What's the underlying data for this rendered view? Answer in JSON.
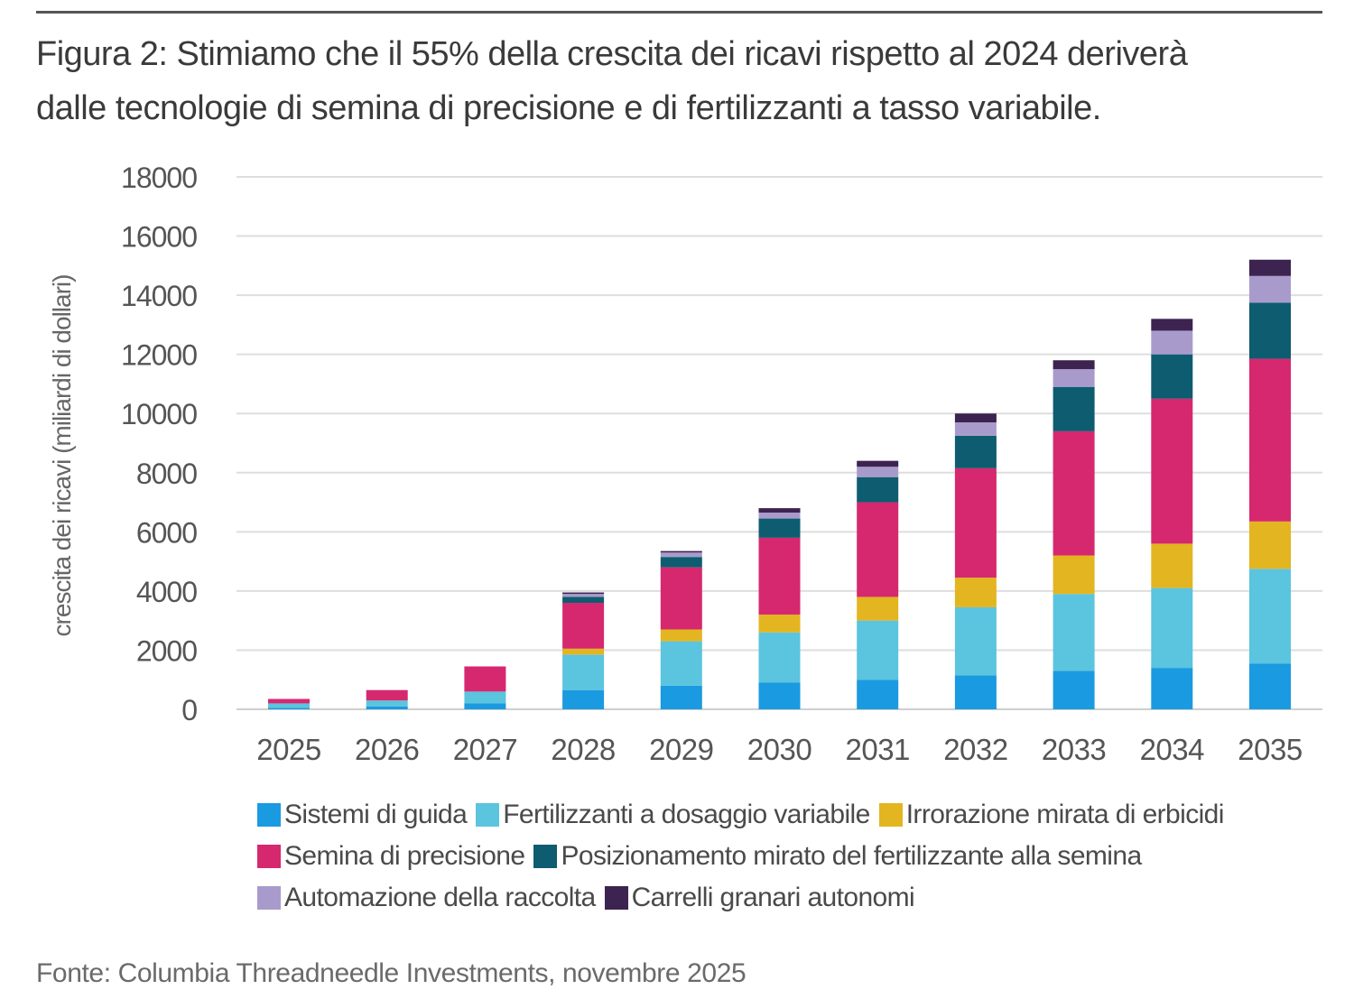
{
  "title": {
    "line1": "Figura 2: Stimiamo che il 55% della crescita dei ricavi rispetto al 2024 deriverà",
    "line2": "dalle tecnologie di semina di precisione e di fertilizzanti a tasso variabile."
  },
  "chart_data": {
    "type": "bar",
    "stacked": true,
    "title": "",
    "xlabel": "",
    "ylabel": "crescita dei ricavi (miliardi di dollari)",
    "ylim": [
      0,
      18000
    ],
    "yticks": [
      "0",
      "2000",
      "4000",
      "6000",
      "8000",
      "10000",
      "12000",
      "14000",
      "16000",
      "18000"
    ],
    "grid": true,
    "legend_position": "bottom",
    "categories": [
      "2025",
      "2026",
      "2027",
      "2028",
      "2029",
      "2030",
      "2031",
      "2032",
      "2033",
      "2034",
      "2035"
    ],
    "series": [
      {
        "name": "Sistemi di guida",
        "color": "#1a9ae0",
        "values": [
          50,
          100,
          200,
          650,
          800,
          900,
          1000,
          1150,
          1300,
          1400,
          1550
        ]
      },
      {
        "name": "Fertilizzanti a dosaggio variabile",
        "color": "#5bc4de",
        "values": [
          150,
          200,
          400,
          1200,
          1500,
          1700,
          2000,
          2300,
          2600,
          2700,
          3200
        ]
      },
      {
        "name": "Irrorazione mirata di erbicidi",
        "color": "#e3b520",
        "values": [
          0,
          0,
          0,
          200,
          400,
          600,
          800,
          1000,
          1300,
          1500,
          1600
        ]
      },
      {
        "name": "Semina di precisione",
        "color": "#d6286f",
        "values": [
          150,
          350,
          850,
          1550,
          2100,
          2600,
          3200,
          3700,
          4200,
          4900,
          5500
        ]
      },
      {
        "name": "Posizionamento mirato del fertilizzante alla semina",
        "color": "#0e5c70",
        "values": [
          0,
          0,
          0,
          200,
          350,
          650,
          850,
          1100,
          1500,
          1500,
          1900
        ]
      },
      {
        "name": "Automazione della raccolta",
        "color": "#a89bcc",
        "values": [
          0,
          0,
          0,
          100,
          150,
          200,
          350,
          450,
          600,
          800,
          900
        ]
      },
      {
        "name": "Carrelli granari autonomi",
        "color": "#3d2350",
        "values": [
          0,
          0,
          0,
          50,
          50,
          150,
          200,
          300,
          300,
          400,
          550
        ]
      }
    ]
  },
  "source": "Fonte: Columbia Threadneedle Investments, novembre 2025"
}
